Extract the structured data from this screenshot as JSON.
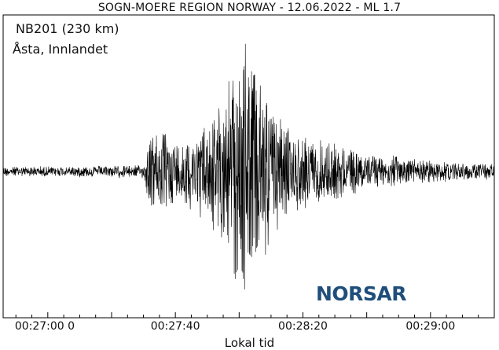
{
  "chart_data": {
    "type": "line",
    "title": "SOGN-MOERE REGION NORWAY - 12.06.2022 - ML 1.7",
    "station": "NB201 (230 km)",
    "location": "Åsta, Innlandet",
    "xlabel": "Lokal tid",
    "ylabel": "",
    "x_ticks": [
      "00:27:00 0",
      "00:27:40",
      "00:28:20",
      "00:29:00"
    ],
    "x_range_seconds": [
      1606,
      1760
    ],
    "grid": false,
    "legend": "none",
    "series": [
      {
        "envelope_points": [
          {
            "t": 1606,
            "amp": 0.04
          },
          {
            "t": 1624,
            "amp": 0.04
          },
          {
            "t": 1650,
            "amp": 0.05
          },
          {
            "t": 1652,
            "amp": 0.3
          },
          {
            "t": 1656,
            "amp": 0.32
          },
          {
            "t": 1660,
            "amp": 0.25
          },
          {
            "t": 1665,
            "amp": 0.3
          },
          {
            "t": 1670,
            "amp": 0.4
          },
          {
            "t": 1675,
            "amp": 0.55
          },
          {
            "t": 1679,
            "amp": 0.9
          },
          {
            "t": 1682,
            "amp": 1.0
          },
          {
            "t": 1686,
            "amp": 0.8
          },
          {
            "t": 1690,
            "amp": 0.55
          },
          {
            "t": 1695,
            "amp": 0.35
          },
          {
            "t": 1700,
            "amp": 0.28
          },
          {
            "t": 1710,
            "amp": 0.22
          },
          {
            "t": 1720,
            "amp": 0.15
          },
          {
            "t": 1735,
            "amp": 0.1
          },
          {
            "t": 1750,
            "amp": 0.07
          },
          {
            "t": 1760,
            "amp": 0.06
          }
        ]
      }
    ],
    "colors": {
      "trace": "#000000",
      "logo": "#1f4e7a"
    }
  },
  "logo": {
    "text": "NORSAR"
  }
}
